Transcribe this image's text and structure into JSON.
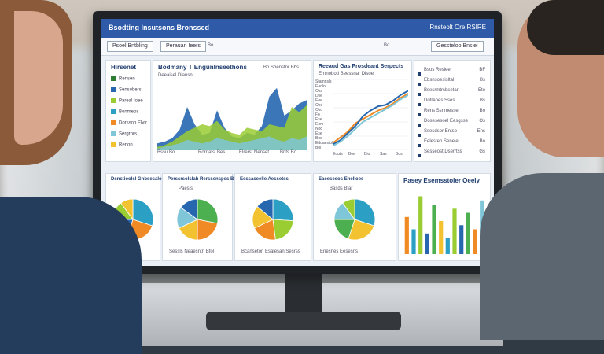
{
  "scene": {
    "description_colors": {
      "primary": "#2e5aa8",
      "panel": "#ffffff",
      "accent_green": "#9acd32",
      "accent_orange": "#f08a24",
      "accent_teal": "#2b9fc4"
    }
  },
  "dashboard": {
    "brand": "Bsodting Insutsons Bronssed",
    "top_right": "Rnsteolt Ore RSIRE",
    "subbar": {
      "left_pill": "Psoel Bntbling",
      "mid_pill": "Perauan Ieers",
      "mid_icon": "Bo",
      "right_pill": "Gessteloo Bnsiel",
      "right_label": "Bo"
    },
    "left_panel": {
      "title": "Hirsenet",
      "items": [
        "Rensen",
        "Sensobers",
        "Pareal Ioee",
        "Bonmeos",
        "Dorssoo Elvtr",
        "Sergrors",
        "Renon"
      ]
    },
    "area_chart": {
      "title": "Bodmany T Engunlnseethons",
      "subtitle": "Deeaisel Diansn",
      "legend": "Bo Sbensfnr Bbs",
      "x_labels": [
        "Bssu Bo",
        "Rorrlatsl Bes",
        "Elrerst Nenset",
        "Bnts Bo"
      ]
    },
    "line_chart": {
      "title": "Reeaud Gas Prosdeant Serpects",
      "subtitle": "Ernnobod Beessnar Disoe",
      "y_labels": [
        "Stamnsls",
        "Eaolo",
        "Oss",
        "Dse",
        "Eoe",
        "Ose",
        "Oso",
        "Fo",
        "Ese",
        "Eom",
        "Nod",
        "Ese",
        "Bos",
        "Edoaestoles",
        "Bol"
      ],
      "x_labels": [
        "Eouts",
        "Boe",
        "Bio",
        "Sas",
        "Bos"
      ]
    },
    "table": {
      "rows": [
        {
          "label": "Bsos Resleer",
          "value": "BF"
        },
        {
          "label": "Ebsnsoesisltal",
          "value": "Bs"
        },
        {
          "label": "Bsesrmtrsbsetar",
          "value": "Eto"
        },
        {
          "label": "Dotranes Sses",
          "value": "Bs"
        },
        {
          "label": "Rens Ssnmesse",
          "value": "Bo"
        },
        {
          "label": "Dosesesoel Eesgsse",
          "value": "Os"
        },
        {
          "label": "Ssesdsor Entso",
          "value": "Ens"
        },
        {
          "label": "Eelesten Senele",
          "value": "Bo"
        },
        {
          "label": "Sesseost Dserrtss",
          "value": "Gs"
        }
      ]
    },
    "pie_panels": [
      {
        "title": "Dsnstioolsl Gnbsesalor",
        "caption": ""
      },
      {
        "title": "Perssrsolslah Rerssenspss Btat",
        "caption": "Paesisl",
        "footer": "Sessls Neaesntn Bfol"
      },
      {
        "title": "Eessaseelle Aessetss",
        "caption": "",
        "footer": "Bcanseton Esalesan Sesrss"
      },
      {
        "title": "Eaeeseeos Enelloes",
        "caption": "Basds Bfar",
        "footer": "Enesnes Eesesns"
      }
    ],
    "bar_panel": {
      "title": "Pasey Esemsstoler Oeely"
    }
  },
  "chart_data": [
    {
      "type": "area",
      "title": "Bodmany T Engunlnseethons",
      "x": [
        0,
        1,
        2,
        3,
        4,
        5,
        6,
        7,
        8,
        9,
        10,
        11,
        12,
        13,
        14,
        15,
        16,
        17,
        18,
        19,
        20
      ],
      "series": [
        {
          "name": "",
          "color": "#2667b0",
          "values": [
            8,
            10,
            14,
            24,
            50,
            30,
            18,
            20,
            46,
            26,
            16,
            14,
            20,
            18,
            28,
            62,
            72,
            40,
            46,
            54,
            58
          ]
        },
        {
          "name": "",
          "color": "#9acd32",
          "values": [
            4,
            6,
            10,
            16,
            22,
            26,
            30,
            28,
            34,
            24,
            20,
            18,
            26,
            24,
            22,
            30,
            28,
            26,
            50,
            44,
            52
          ]
        },
        {
          "name": "",
          "color": "#7fc6d8",
          "values": [
            2,
            4,
            6,
            8,
            12,
            10,
            8,
            10,
            14,
            12,
            10,
            8,
            10,
            12,
            14,
            16,
            12,
            10,
            14,
            12,
            16
          ]
        }
      ],
      "ylim": [
        0,
        80
      ]
    },
    {
      "type": "line",
      "title": "Reeaud Gas Prosdeant Serpects",
      "x": [
        0,
        1,
        2,
        3,
        4,
        5,
        6,
        7,
        8,
        9,
        10
      ],
      "series": [
        {
          "name": "",
          "color": "#f08a24",
          "values": [
            10,
            18,
            26,
            38,
            44,
            50,
            56,
            60,
            66,
            74,
            80
          ]
        },
        {
          "name": "",
          "color": "#2667b0",
          "values": [
            8,
            14,
            24,
            34,
            48,
            56,
            62,
            64,
            70,
            78,
            84
          ]
        },
        {
          "name": "",
          "color": "#7fc6d8",
          "values": [
            6,
            12,
            20,
            30,
            40,
            46,
            52,
            58,
            64,
            72,
            78
          ]
        }
      ],
      "ylim": [
        0,
        100
      ]
    },
    {
      "type": "pie",
      "slices": [
        {
          "value": 30,
          "color": "#2b9fc4"
        },
        {
          "value": 25,
          "color": "#f08a24"
        },
        {
          "value": 20,
          "color": "#2667b0"
        },
        {
          "value": 15,
          "color": "#9acd32"
        },
        {
          "value": 10,
          "color": "#f2c230"
        }
      ]
    },
    {
      "type": "pie",
      "slices": [
        {
          "value": 28,
          "color": "#4caf50"
        },
        {
          "value": 22,
          "color": "#f08a24"
        },
        {
          "value": 18,
          "color": "#f2c230"
        },
        {
          "value": 17,
          "color": "#7fc6d8"
        },
        {
          "value": 15,
          "color": "#2667b0"
        }
      ]
    },
    {
      "type": "pie",
      "slices": [
        {
          "value": 26,
          "color": "#2b9fc4"
        },
        {
          "value": 22,
          "color": "#9acd32"
        },
        {
          "value": 20,
          "color": "#f08a24"
        },
        {
          "value": 18,
          "color": "#f2c230"
        },
        {
          "value": 14,
          "color": "#2667b0"
        }
      ]
    },
    {
      "type": "pie",
      "slices": [
        {
          "value": 30,
          "color": "#2b9fc4"
        },
        {
          "value": 25,
          "color": "#f2c230"
        },
        {
          "value": 20,
          "color": "#4caf50"
        },
        {
          "value": 15,
          "color": "#7fc6d8"
        },
        {
          "value": 10,
          "color": "#9acd32"
        }
      ]
    },
    {
      "type": "bar",
      "values": [
        45,
        30,
        70,
        25,
        60,
        40,
        20,
        55,
        35,
        50,
        30,
        65
      ],
      "colors": [
        "#f08a24",
        "#2b9fc4",
        "#9acd32",
        "#2667b0",
        "#4caf50",
        "#f2c230",
        "#2b9fc4",
        "#9acd32",
        "#2667b0",
        "#4caf50",
        "#f08a24",
        "#7fc6d8"
      ],
      "ylim": [
        0,
        80
      ]
    }
  ]
}
